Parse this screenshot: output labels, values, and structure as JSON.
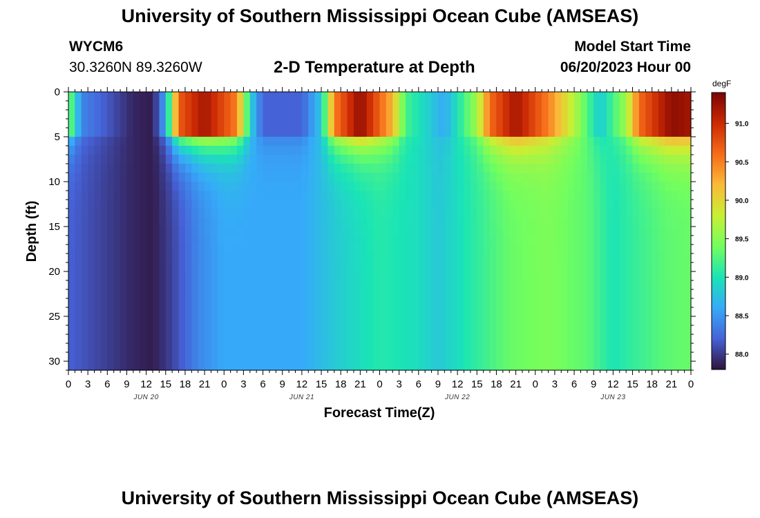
{
  "header": {
    "title": "University of Southern Mississippi Ocean Cube (AMSEAS)",
    "station": "WYCM6",
    "coords": "30.3260N  89.3260W",
    "subtitle": "2-D Temperature at Depth",
    "model_start_label": "Model Start Time",
    "model_start_value": "06/20/2023 Hour 00"
  },
  "footer": {
    "title": "University of Southern Mississippi Ocean Cube (AMSEAS)"
  },
  "chart_data": {
    "type": "heatmap",
    "title": "2-D Temperature at Depth",
    "xlabel": "Forecast Time(Z)",
    "ylabel": "Depth (ft)",
    "x_tick_labels": [
      "0",
      "3",
      "6",
      "9",
      "12",
      "15",
      "18",
      "21",
      "0",
      "3",
      "6",
      "9",
      "12",
      "15",
      "18",
      "21",
      "0",
      "3",
      "6",
      "9",
      "12",
      "15",
      "18",
      "21",
      "0",
      "3",
      "6",
      "9",
      "12",
      "15",
      "18",
      "21",
      "0"
    ],
    "x_day_labels": [
      "JUN 20",
      "JUN 21",
      "JUN 22",
      "JUN 23"
    ],
    "x_range_hours": [
      0,
      96
    ],
    "y_ticks": [
      0,
      5,
      10,
      15,
      20,
      25,
      30
    ],
    "y_range": [
      0,
      31
    ],
    "y_reversed": true,
    "colorbar": {
      "unit": "degF",
      "ticks": [
        "88.0",
        "88.5",
        "89.0",
        "89.5",
        "90.0",
        "90.5",
        "91.0"
      ],
      "range": [
        87.8,
        91.4
      ],
      "colors": [
        "#30123b",
        "#4662d7",
        "#36aaf9",
        "#1ae4b6",
        "#72fe5e",
        "#c8ef34",
        "#faba39",
        "#f66b19",
        "#cb2a04",
        "#7a0403"
      ]
    },
    "surface_layer_depth_ft": 5,
    "deep_profile_hourly_degF": [
      {
        "hour": 0,
        "value": 88.2
      },
      {
        "hour": 10,
        "value": 87.9
      },
      {
        "hour": 13,
        "value": 87.85
      },
      {
        "hour": 16,
        "value": 88.05
      },
      {
        "hour": 20,
        "value": 88.4
      },
      {
        "hour": 24,
        "value": 88.6
      },
      {
        "hour": 36,
        "value": 88.6
      },
      {
        "hour": 42,
        "value": 88.85
      },
      {
        "hour": 48,
        "value": 89.05
      },
      {
        "hour": 54,
        "value": 88.95
      },
      {
        "hour": 57,
        "value": 88.8
      },
      {
        "hour": 61,
        "value": 89.0
      },
      {
        "hour": 68,
        "value": 89.35
      },
      {
        "hour": 74,
        "value": 89.45
      },
      {
        "hour": 80,
        "value": 89.3
      },
      {
        "hour": 84,
        "value": 89.0
      },
      {
        "hour": 88,
        "value": 89.15
      },
      {
        "hour": 92,
        "value": 89.3
      },
      {
        "hour": 96,
        "value": 89.35
      }
    ],
    "surface_profile_hourly_degF": [
      {
        "hour": 0,
        "value": 89.5
      },
      {
        "hour": 2,
        "value": 88.4
      },
      {
        "hour": 10,
        "value": 87.9
      },
      {
        "hour": 13,
        "value": 87.85
      },
      {
        "hour": 15,
        "value": 88.6
      },
      {
        "hour": 17,
        "value": 90.7
      },
      {
        "hour": 21,
        "value": 91.2
      },
      {
        "hour": 26,
        "value": 90.5
      },
      {
        "hour": 28,
        "value": 88.9
      },
      {
        "hour": 30,
        "value": 88.2
      },
      {
        "hour": 36,
        "value": 88.2
      },
      {
        "hour": 39,
        "value": 88.8
      },
      {
        "hour": 41,
        "value": 90.5
      },
      {
        "hour": 45,
        "value": 91.3
      },
      {
        "hour": 50,
        "value": 90.2
      },
      {
        "hour": 52,
        "value": 89.2
      },
      {
        "hour": 58,
        "value": 88.6
      },
      {
        "hour": 63,
        "value": 89.6
      },
      {
        "hour": 65,
        "value": 90.6
      },
      {
        "hour": 69,
        "value": 91.2
      },
      {
        "hour": 74,
        "value": 90.5
      },
      {
        "hour": 78,
        "value": 89.7
      },
      {
        "hour": 82,
        "value": 88.8
      },
      {
        "hour": 86,
        "value": 89.6
      },
      {
        "hour": 88,
        "value": 90.6
      },
      {
        "hour": 93,
        "value": 91.3
      },
      {
        "hour": 96,
        "value": 91.2
      }
    ]
  }
}
